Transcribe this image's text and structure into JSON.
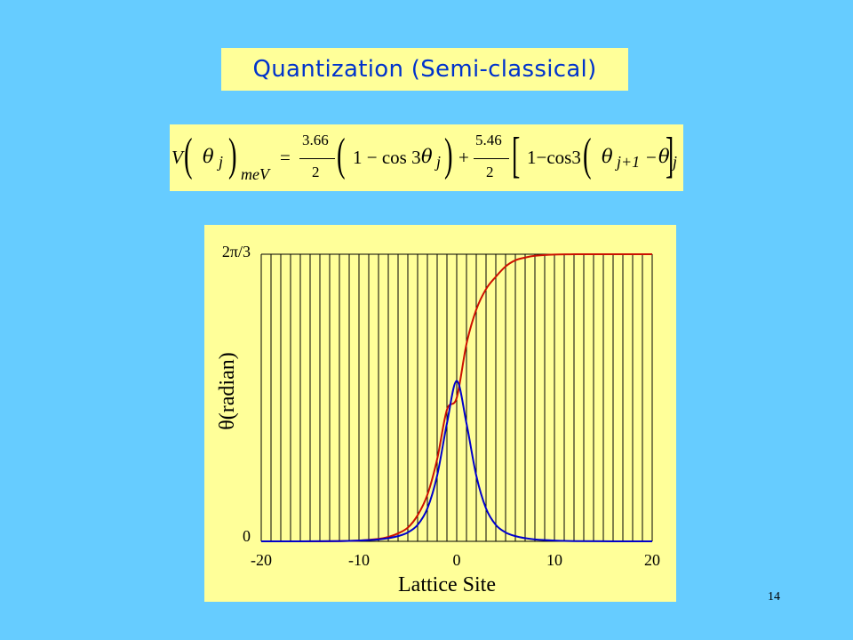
{
  "slide": {
    "title": "Quantization (Semi-classical)",
    "page_number": "14"
  },
  "formula": {
    "V": "V",
    "theta": "θ",
    "j": "j",
    "unit_subscript": "meV",
    "equals": "=",
    "coef1_num": "3.66",
    "coef1_den": "2",
    "one_minus_cos_3": "1 − cos 3",
    "plus": "+",
    "coef2_num": "5.46",
    "coef2_den": "2",
    "one_minus_cos3": "1−cos3",
    "j_plus_1": "j+1",
    "minus": "−"
  },
  "colors": {
    "background": "#66ccff",
    "panel": "#ffff99",
    "title_text": "#0033cc",
    "red_series": "#cc1100",
    "blue_series": "#0000cc"
  },
  "chart_data": {
    "type": "line",
    "title": "",
    "xlabel": "Lattice Site",
    "ylabel": "θ(radian)",
    "xlim": [
      -20,
      20
    ],
    "ylim": [
      0,
      2.0944
    ],
    "x_ticks": [
      -20,
      -10,
      0,
      10,
      20
    ],
    "x_tick_labels": [
      "-20",
      "-10",
      "0",
      "10",
      "20"
    ],
    "y_ticks": [
      0,
      2.0944
    ],
    "y_tick_labels": [
      "0",
      "2π/3"
    ],
    "grid": "vertical line at each lattice site from -20 to 20",
    "legend": "none",
    "series": [
      {
        "color": "#cc1100",
        "x": [
          -20,
          -18,
          -16,
          -14,
          -12,
          -10,
          -8,
          -7,
          -6,
          -5,
          -4,
          -3,
          -2,
          -1,
          0,
          1,
          2,
          3,
          4,
          5,
          6,
          7,
          8,
          10,
          12,
          14,
          16,
          18,
          20
        ],
        "y": [
          0.0,
          0.0,
          0.0,
          0.0,
          0.002,
          0.006,
          0.018,
          0.032,
          0.058,
          0.1,
          0.19,
          0.34,
          0.6,
          0.96,
          1.047,
          1.44,
          1.69,
          1.84,
          1.93,
          2.005,
          2.05,
          2.07,
          2.083,
          2.092,
          2.094,
          2.094,
          2.094,
          2.094,
          2.094
        ]
      },
      {
        "color": "#0000cc",
        "x": [
          -20,
          -16,
          -12,
          -10,
          -8,
          -7,
          -6,
          -5,
          -4,
          -3,
          -2,
          -1,
          0,
          1,
          2,
          3,
          4,
          5,
          6,
          7,
          8,
          10,
          12,
          16,
          20
        ],
        "y": [
          0.0,
          0.0,
          0.002,
          0.006,
          0.014,
          0.023,
          0.038,
          0.065,
          0.12,
          0.24,
          0.48,
          0.86,
          1.17,
          0.86,
          0.48,
          0.24,
          0.12,
          0.065,
          0.038,
          0.023,
          0.014,
          0.006,
          0.002,
          0.0,
          0.0
        ]
      }
    ]
  }
}
